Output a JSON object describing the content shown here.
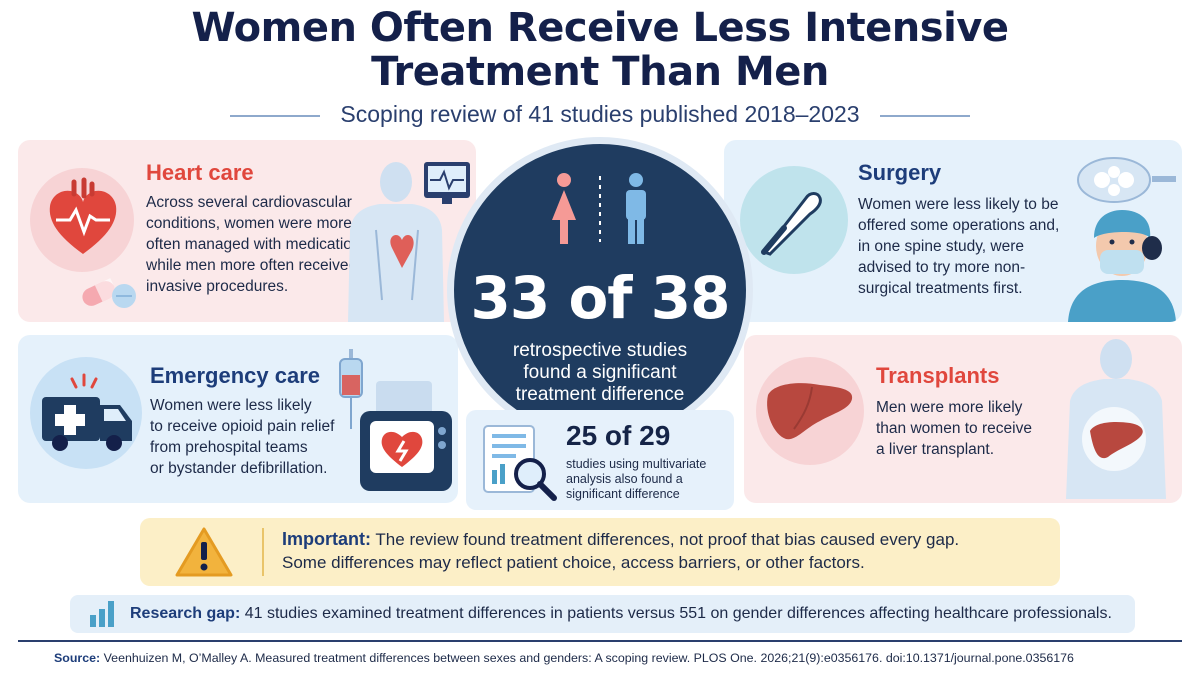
{
  "title_line1": "Women Often Receive Less Intensive",
  "title_line2": "Treatment Than Men",
  "subtitle": "Scoping review of 41 studies published 2018–2023",
  "colors": {
    "navy": "#14204a",
    "red_accent": "#e0473d",
    "blue_accent": "#1d3d7a",
    "center_circle": "#1f3c60",
    "warning_yellow": "#fcefc7"
  },
  "cards": {
    "heart": {
      "title": "Heart care",
      "lines": [
        "Across several cardiovascular",
        "conditions, women were more",
        "often managed with medication,",
        "while men more often received",
        "invasive procedures."
      ],
      "icons": [
        "heart-icon",
        "pill-icon",
        "monitor-icon",
        "body-heart-icon"
      ]
    },
    "emergency": {
      "title": "Emergency care",
      "lines": [
        "Women were less likely",
        "to receive opioid pain relief",
        "from prehospital teams",
        "or bystander defibrillation."
      ],
      "icons": [
        "ambulance-icon",
        "iv-drip-icon",
        "defibrillator-icon"
      ]
    },
    "surgery": {
      "title": "Surgery",
      "lines": [
        "Women were less likely to be",
        "offered some operations and,",
        "in one spine study, were",
        "advised to try more non-",
        "surgical treatments first."
      ],
      "icons": [
        "scalpel-icon",
        "surgical-lamp-icon",
        "surgeon-icon"
      ]
    },
    "transplants": {
      "title": "Transplants",
      "lines": [
        "Men were more likely",
        "than women to receive",
        "a liver transplant."
      ],
      "icons": [
        "liver-icon",
        "body-liver-icon"
      ]
    }
  },
  "center": {
    "stat": "33 of 38",
    "lines": [
      "retrospective studies",
      "found a significant",
      "treatment difference"
    ],
    "icons": [
      "woman-icon",
      "man-icon"
    ]
  },
  "mini": {
    "stat": "25 of 29",
    "lines": [
      "studies using multivariate",
      "analysis also found a",
      "significant difference"
    ],
    "icon": "document-magnifier-icon"
  },
  "important": {
    "label": "Important:",
    "line1": "The review found treatment differences, not proof that bias caused every gap.",
    "line2": "Some differences may reflect patient choice, access barriers, or other factors.",
    "icon": "warning-icon"
  },
  "research_gap": {
    "label": "Research gap:",
    "text": "41 studies examined treatment differences in patients versus 551 on gender differences affecting healthcare professionals.",
    "icon": "bar-chart-icon"
  },
  "source": {
    "label": "Source:",
    "text": "Veenhuizen M, O’Malley A. Measured treatment differences between sexes and genders: A scoping review. PLOS One. 2026;21(9):e0356176. doi:10.1371/journal.pone.0356176"
  }
}
